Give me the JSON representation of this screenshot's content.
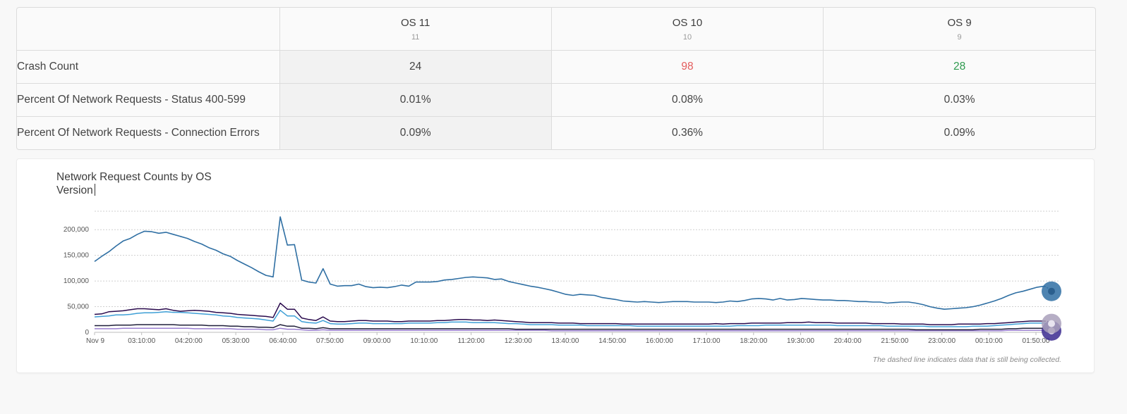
{
  "comparison": {
    "columns": [
      {
        "name": "OS 11",
        "sub": "11"
      },
      {
        "name": "OS 10",
        "sub": "10"
      },
      {
        "name": "OS 9",
        "sub": "9"
      }
    ],
    "rows": [
      {
        "label": "Crash Count",
        "values": [
          "24",
          "98",
          "28"
        ]
      },
      {
        "label": "Percent Of Network Requests - Status 400-599",
        "values": [
          "0.01%",
          "0.08%",
          "0.03%"
        ]
      },
      {
        "label": "Percent Of Network Requests -  Connection Errors",
        "values": [
          "0.09%",
          "0.36%",
          "0.09%"
        ]
      }
    ],
    "highlight_colors": {
      "worse": "#e35d5d",
      "better": "#2e9a4e"
    }
  },
  "chart": {
    "title": "Network Request Counts by OS Version",
    "note": "The dashed line indicates data that is still being collected."
  },
  "chart_data": {
    "type": "line",
    "title": "Network Request Counts by OS Version",
    "xlabel": "",
    "ylabel": "",
    "ylim": [
      0,
      225000
    ],
    "yticks": [
      0,
      50000,
      100000,
      150000,
      200000
    ],
    "ytick_labels": [
      "0",
      "50,000",
      "100,000",
      "150,000",
      "200,000"
    ],
    "x_tick_labels": [
      "Nov 9",
      "03:10:00",
      "04:20:00",
      "05:30:00",
      "06:40:00",
      "07:50:00",
      "09:00:00",
      "10:10:00",
      "11:20:00",
      "12:30:00",
      "13:40:00",
      "14:50:00",
      "16:00:00",
      "17:10:00",
      "18:20:00",
      "19:30:00",
      "20:40:00",
      "21:50:00",
      "23:00:00",
      "00:10:00",
      "01:50:00"
    ],
    "grid": true,
    "series": [
      {
        "color": "#2f6fa3",
        "values": [
          138000,
          148000,
          157000,
          168000,
          178000,
          183000,
          191000,
          197000,
          196000,
          193000,
          195000,
          191000,
          187000,
          183000,
          177000,
          172000,
          165000,
          160000,
          153000,
          148000,
          140000,
          133000,
          126000,
          118000,
          111000,
          108000,
          225000,
          170000,
          171000,
          102000,
          98000,
          96000,
          124000,
          94000,
          90000,
          91000,
          91000,
          94000,
          89000,
          87000,
          88000,
          87000,
          89000,
          92000,
          90000,
          98000,
          98000,
          98000,
          99000,
          102000,
          103000,
          105000,
          107000,
          108000,
          107000,
          106000,
          103000,
          104000,
          99000,
          96000,
          93000,
          90000,
          88000,
          85000,
          82000,
          78000,
          74000,
          72000,
          74000,
          73000,
          72000,
          68000,
          66000,
          64000,
          61000,
          60000,
          59000,
          60000,
          59000,
          58000,
          59000,
          60000,
          60000,
          60000,
          59000,
          59000,
          59000,
          58000,
          59000,
          61000,
          60000,
          62000,
          65000,
          66000,
          65000,
          63000,
          66000,
          63000,
          64000,
          66000,
          65000,
          64000,
          63000,
          63000,
          62000,
          62000,
          61000,
          60000,
          60000,
          59000,
          59000,
          57000,
          58000,
          59000,
          59000,
          57000,
          54000,
          50000,
          47000,
          45000,
          46000,
          47000,
          48000,
          50000,
          53000,
          57000,
          61000,
          66000,
          72000,
          77000,
          80000,
          84000,
          88000,
          90000,
          82000
        ]
      },
      {
        "color": "#2a0a4d",
        "values": [
          35000,
          36000,
          40000,
          41000,
          42000,
          44000,
          46000,
          46000,
          45000,
          44000,
          46000,
          43000,
          41000,
          42000,
          43000,
          42000,
          41000,
          39000,
          38000,
          37000,
          35000,
          34000,
          33000,
          32000,
          31000,
          29000,
          57000,
          45000,
          45000,
          28000,
          25000,
          23000,
          30000,
          22000,
          21000,
          21000,
          22000,
          23000,
          23000,
          22000,
          22000,
          22000,
          21000,
          21000,
          22000,
          22000,
          22000,
          22000,
          23000,
          23000,
          24000,
          25000,
          25000,
          24000,
          24000,
          23000,
          24000,
          23000,
          22000,
          21000,
          20000,
          19000,
          19000,
          19000,
          19000,
          18000,
          18000,
          18000,
          17000,
          17000,
          17000,
          17000,
          17000,
          17000,
          16000,
          16000,
          16000,
          16000,
          16000,
          16000,
          16000,
          16000,
          16000,
          16000,
          16000,
          16000,
          16000,
          17000,
          16000,
          17000,
          17000,
          17000,
          18000,
          18000,
          18000,
          18000,
          18000,
          19000,
          19000,
          19000,
          20000,
          19000,
          19000,
          19000,
          18000,
          18000,
          18000,
          18000,
          18000,
          17000,
          17000,
          17000,
          17000,
          16000,
          16000,
          16000,
          16000,
          15000,
          15000,
          15000,
          15000,
          16000,
          16000,
          16000,
          16000,
          17000,
          17000,
          18000,
          19000,
          20000,
          21000,
          22000,
          22000,
          22000,
          20000
        ]
      },
      {
        "color": "#3e9fd6",
        "values": [
          30000,
          31000,
          32000,
          34000,
          34000,
          35000,
          37000,
          38000,
          38000,
          39000,
          40000,
          39000,
          39000,
          38000,
          37000,
          36000,
          35000,
          34000,
          32000,
          31000,
          29000,
          28000,
          27000,
          26000,
          24000,
          22000,
          43000,
          32000,
          32000,
          21000,
          19000,
          18000,
          23000,
          17000,
          16000,
          16000,
          17000,
          18000,
          18000,
          17000,
          17000,
          17000,
          17000,
          17000,
          18000,
          18000,
          18000,
          18000,
          19000,
          19000,
          20000,
          20000,
          20000,
          19000,
          19000,
          19000,
          19000,
          18000,
          17000,
          17000,
          16000,
          15000,
          15000,
          15000,
          15000,
          14000,
          14000,
          14000,
          14000,
          13000,
          13000,
          13000,
          13000,
          13000,
          13000,
          13000,
          12000,
          12000,
          12000,
          12000,
          12000,
          12000,
          12000,
          12000,
          12000,
          12000,
          12000,
          12000,
          12000,
          12000,
          13000,
          13000,
          13000,
          13000,
          14000,
          14000,
          14000,
          14000,
          14000,
          14000,
          14000,
          14000,
          14000,
          14000,
          13000,
          13000,
          13000,
          13000,
          13000,
          13000,
          13000,
          12000,
          12000,
          12000,
          12000,
          12000,
          12000,
          11000,
          11000,
          11000,
          11000,
          11000,
          11000,
          12000,
          12000,
          12000,
          13000,
          14000,
          15000,
          16000,
          17000,
          18000,
          18000,
          18000,
          17000
        ]
      },
      {
        "color": "#1f1f3a",
        "values": [
          13000,
          13000,
          13000,
          14000,
          14000,
          14000,
          15000,
          15000,
          15000,
          15000,
          15000,
          15000,
          14000,
          14000,
          14000,
          14000,
          13000,
          13000,
          13000,
          12000,
          12000,
          11000,
          11000,
          10000,
          10000,
          9000,
          15000,
          12000,
          12000,
          8000,
          8000,
          7000,
          9000,
          7000,
          7000,
          7000,
          7000,
          7000,
          7000,
          7000,
          7000,
          7000,
          7000,
          7000,
          7000,
          7000,
          7000,
          7000,
          7000,
          7000,
          7000,
          7000,
          7000,
          7000,
          7000,
          7000,
          7000,
          7000,
          7000,
          6000,
          6000,
          6000,
          6000,
          6000,
          6000,
          6000,
          6000,
          6000,
          6000,
          6000,
          6000,
          6000,
          6000,
          6000,
          6000,
          6000,
          6000,
          6000,
          6000,
          6000,
          6000,
          6000,
          6000,
          6000,
          6000,
          6000,
          6000,
          6000,
          6000,
          6000,
          6000,
          6000,
          6000,
          6000,
          6000,
          6000,
          6000,
          6000,
          6000,
          6000,
          6000,
          6000,
          6000,
          6000,
          6000,
          6000,
          6000,
          6000,
          6000,
          6000,
          6000,
          6000,
          6000,
          6000,
          6000,
          5000,
          5000,
          5000,
          5000,
          5000,
          5000,
          5000,
          5000,
          5000,
          6000,
          6000,
          6000,
          6000,
          7000,
          7000,
          8000,
          8000,
          8000,
          8000,
          7000
        ]
      },
      {
        "color": "#9a7fd1",
        "values": [
          7000,
          7000,
          7000,
          7000,
          8000,
          8000,
          8000,
          8000,
          8000,
          8000,
          8000,
          8000,
          8000,
          8000,
          7000,
          7000,
          7000,
          7000,
          7000,
          7000,
          6000,
          6000,
          6000,
          6000,
          5000,
          5000,
          8000,
          6000,
          6000,
          5000,
          4000,
          4000,
          5000,
          4000,
          4000,
          4000,
          4000,
          4000,
          4000,
          4000,
          4000,
          4000,
          4000,
          4000,
          4000,
          4000,
          4000,
          4000,
          4000,
          4000,
          4000,
          4000,
          4000,
          4000,
          4000,
          4000,
          4000,
          4000,
          4000,
          4000,
          4000,
          4000,
          4000,
          4000,
          3000,
          3000,
          3000,
          3000,
          3000,
          3000,
          3000,
          3000,
          3000,
          3000,
          3000,
          3000,
          3000,
          3000,
          3000,
          3000,
          3000,
          3000,
          3000,
          3000,
          3000,
          3000,
          3000,
          3000,
          3000,
          3000,
          3000,
          3000,
          3000,
          3000,
          3000,
          3000,
          3000,
          3000,
          3000,
          3000,
          3000,
          3000,
          3000,
          3000,
          3000,
          3000,
          3000,
          3000,
          3000,
          3000,
          3000,
          3000,
          3000,
          3000,
          3000,
          3000,
          3000,
          3000,
          3000,
          3000,
          3000,
          3000,
          3000,
          3000,
          3000,
          3000,
          3000,
          3000,
          4000,
          4000,
          4000,
          4000,
          4000,
          4000,
          3000
        ]
      }
    ],
    "end_markers": [
      {
        "color": "#2f6fa3",
        "value": 80000
      },
      {
        "color": "#a9a0bb",
        "value": 17000
      },
      {
        "color": "#3b2a8f",
        "value": 3000
      }
    ]
  }
}
